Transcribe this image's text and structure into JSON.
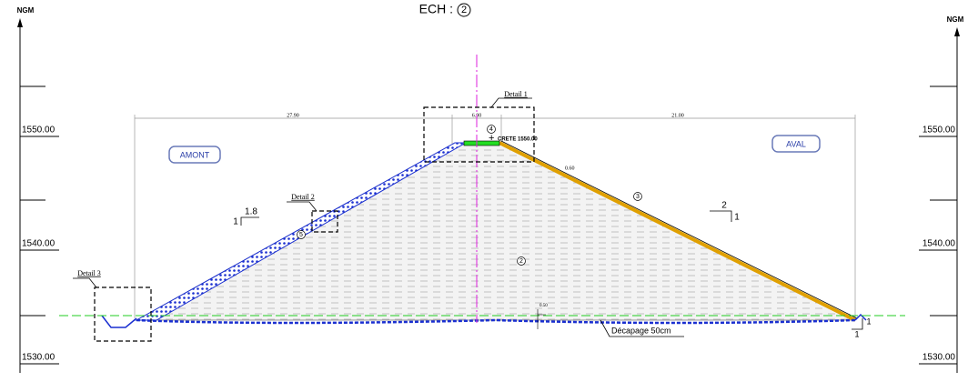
{
  "header": {
    "title": "ECH :",
    "scale_mark": "2"
  },
  "axes": {
    "left_unit": "NGM",
    "right_unit": "NGM",
    "left_labels": [
      "1550.00",
      "1540.00",
      "1530.00"
    ],
    "right_labels": [
      "1550.00",
      "1540.00",
      "1530.00"
    ]
  },
  "zones": {
    "upstream": "AMONT",
    "downstream": "AVAL"
  },
  "details": [
    "Detail 1",
    "Detail 2",
    "Detail 3"
  ],
  "dimensions": [
    "27.90",
    "6.00",
    "21.00"
  ],
  "crest": "CRETE 1550.00",
  "thickness": [
    "0.60",
    "0.50"
  ],
  "slopes": {
    "upstream": {
      "h": "1.8",
      "v": "1"
    },
    "downstream": {
      "h": "2",
      "v": "1"
    },
    "toe": {
      "h": "1",
      "v": "1"
    }
  },
  "materials": [
    "4",
    "3",
    "2",
    "5"
  ],
  "stripping": "Décapage 50cm"
}
